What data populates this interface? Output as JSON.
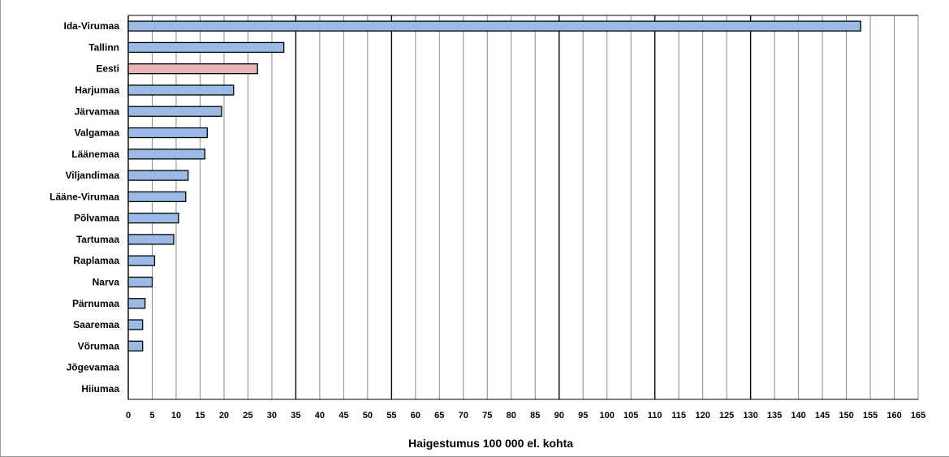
{
  "chart_data": {
    "type": "bar",
    "orientation": "horizontal",
    "title": "",
    "xlabel": "Haigestumus  100 000 el. kohta",
    "ylabel": "",
    "xlim": [
      0,
      165
    ],
    "tick_step": 5,
    "grid": true,
    "major_gridlines_at": [
      35,
      55,
      90,
      110,
      130
    ],
    "categories": [
      "Ida-Virumaa",
      "Tallinn",
      "Eesti",
      "Harjumaa",
      "Järvamaa",
      "Valgamaa",
      "Läänemaa",
      "Viljandimaa",
      "Lääne-Virumaa",
      "Põlvamaa",
      "Tartumaa",
      "Raplamaa",
      "Narva",
      "Pärnumaa",
      "Saaremaa",
      "Võrumaa",
      "Jõgevamaa",
      "Hiiumaa"
    ],
    "values": [
      153,
      32.5,
      27,
      22,
      19.5,
      16.5,
      16,
      12.5,
      12,
      10.5,
      9.5,
      5.5,
      5,
      3.5,
      3,
      3,
      0,
      0
    ],
    "colors": {
      "default_bar": "#9bbbe6",
      "highlight_bar": "#e8b5b5",
      "highlight_category": "Eesti",
      "bar_outline": "#000000"
    }
  }
}
